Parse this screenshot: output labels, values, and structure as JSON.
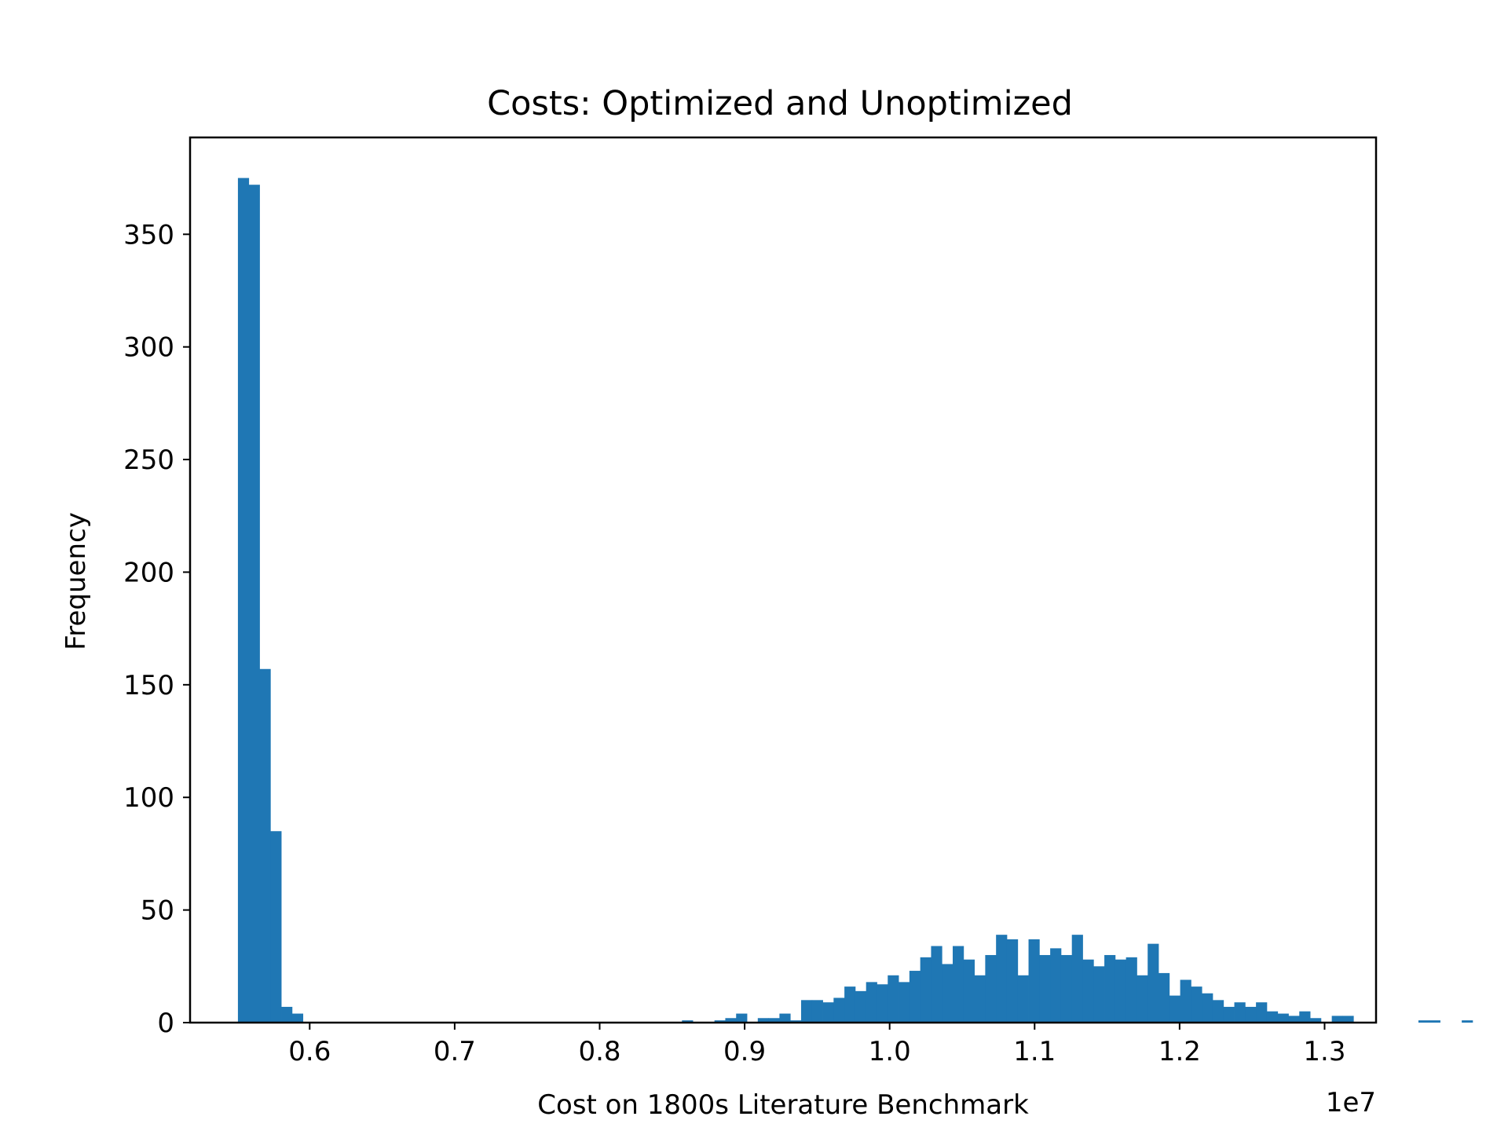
{
  "chart_data": {
    "type": "bar",
    "subtype": "histogram",
    "title": "Costs: Optimized and Unoptimized",
    "xlabel": "Cost on 1800s Literature Benchmark",
    "ylabel": "Frequency",
    "x_offset_label": "1e7",
    "x_scale_note": "x values in units of 1e7",
    "xlim": [
      0.5175,
      1.3355
    ],
    "ylim": [
      0,
      393
    ],
    "x_ticks": [
      0.6,
      0.7,
      0.8,
      0.9,
      1.0,
      1.1,
      1.2,
      1.3
    ],
    "x_tick_labels": [
      "0.6",
      "0.7",
      "0.8",
      "0.9",
      "1.0",
      "1.1",
      "1.2",
      "1.3"
    ],
    "y_ticks": [
      0,
      50,
      100,
      150,
      200,
      250,
      300,
      350
    ],
    "y_tick_labels": [
      "0",
      "50",
      "100",
      "150",
      "200",
      "250",
      "300",
      "350"
    ],
    "grid": false,
    "color": "#1f77b4",
    "bin_start": 0.5505,
    "bin_width": 0.00747,
    "counts": [
      375,
      372,
      157,
      85,
      7,
      4,
      0,
      0,
      0,
      0,
      0,
      0,
      0,
      0,
      0,
      0,
      0,
      0,
      0,
      0,
      0,
      0,
      0,
      0,
      0,
      0,
      0,
      0,
      0,
      0,
      0,
      0,
      0,
      0,
      0,
      0,
      0,
      0,
      0,
      0,
      0,
      1,
      0,
      0,
      1,
      2,
      4,
      0,
      2,
      2,
      4,
      1,
      10,
      10,
      9,
      11,
      16,
      14,
      18,
      17,
      21,
      18,
      23,
      29,
      34,
      26,
      34,
      28,
      21,
      30,
      39,
      37,
      21,
      37,
      30,
      33,
      30,
      39,
      28,
      25,
      30,
      28,
      29,
      21,
      35,
      22,
      12,
      19,
      16,
      13,
      10,
      7,
      9,
      7,
      9,
      5,
      4,
      3,
      5,
      2,
      0,
      3,
      3,
      0,
      0,
      0,
      0,
      0,
      0,
      1,
      1,
      0,
      0,
      1
    ]
  }
}
